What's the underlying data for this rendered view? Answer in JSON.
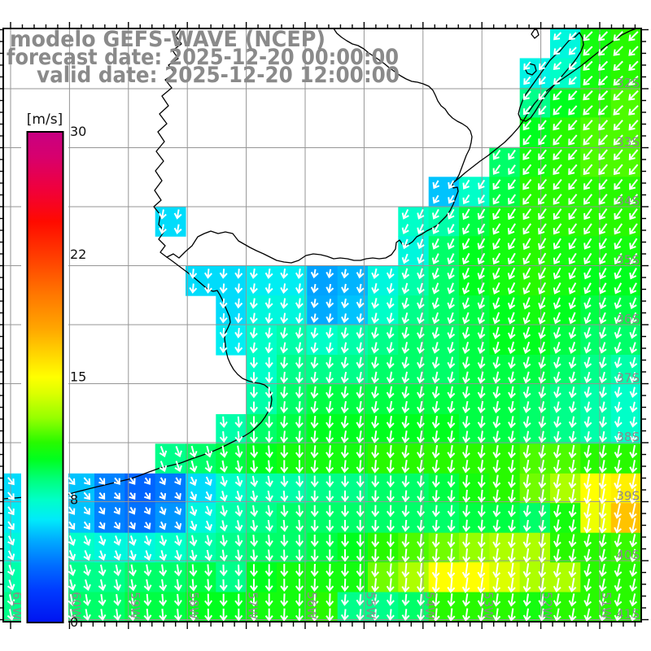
{
  "title": {
    "line1": "modelo GEFS-WAVE (NCEP)",
    "line2": "forecast date: 2025-12-20 00:00:00",
    "line3": "valid date: 2025-12-20 12:00:00"
  },
  "colorbar": {
    "unit_label": "[m/s]",
    "min": 0,
    "max": 30,
    "tick_labels": [
      "30",
      "22",
      "15",
      "8",
      "0"
    ],
    "stops": [
      {
        "v": 0,
        "c": "#0014f0"
      },
      {
        "v": 2,
        "c": "#003cff"
      },
      {
        "v": 3.5,
        "c": "#006eff"
      },
      {
        "v": 5,
        "c": "#00aaff"
      },
      {
        "v": 6.3,
        "c": "#00ebfa"
      },
      {
        "v": 7.5,
        "c": "#00ffc8"
      },
      {
        "v": 8.8,
        "c": "#00ff78"
      },
      {
        "v": 10,
        "c": "#00ff1e"
      },
      {
        "v": 11,
        "c": "#28fa00"
      },
      {
        "v": 12.5,
        "c": "#96ff00"
      },
      {
        "v": 14,
        "c": "#dcff00"
      },
      {
        "v": 15,
        "c": "#ffff00"
      },
      {
        "v": 16.5,
        "c": "#ffd200"
      },
      {
        "v": 18,
        "c": "#ffa500"
      },
      {
        "v": 20,
        "c": "#ff7800"
      },
      {
        "v": 22,
        "c": "#ff4600"
      },
      {
        "v": 24.5,
        "c": "#ff0a00"
      },
      {
        "v": 26.5,
        "c": "#f0003c"
      },
      {
        "v": 28.5,
        "c": "#d7006e"
      },
      {
        "v": 30,
        "c": "#c80082"
      }
    ]
  },
  "colors": {
    "grid": "#969696",
    "axis_label": "#8a8a8a",
    "title": "#8a8a8a",
    "coast": "#000000",
    "arrow": "#ffffff",
    "frame": "#000000",
    "tick": "#000000",
    "colorbar_label": "#111111",
    "background": "#ffffff"
  },
  "chart_data": {
    "type": "heatmap",
    "model": "GEFS-WAVE (NCEP)",
    "variable": "wind speed with direction vectors",
    "unit": "m/s",
    "lat_ticks": [
      "32S",
      "33S",
      "34S",
      "35S",
      "36S",
      "37S",
      "38S",
      "39S",
      "40S",
      "41S"
    ],
    "lon_ticks": [
      "61W",
      "60W",
      "59W",
      "58W",
      "57W",
      "56W",
      "55W",
      "54W",
      "53W",
      "52W",
      "51W"
    ],
    "grid": {
      "cols": 21,
      "rows": 20,
      "cell_size_deg": 0.5
    },
    "speed_ms": [
      [
        null,
        null,
        null,
        null,
        null,
        null,
        null,
        null,
        null,
        null,
        null,
        null,
        null,
        null,
        null,
        null,
        null,
        null,
        7,
        10.5,
        11
      ],
      [
        null,
        null,
        null,
        null,
        null,
        null,
        null,
        null,
        null,
        null,
        null,
        null,
        null,
        null,
        null,
        null,
        null,
        6.8,
        7.5,
        10.5,
        11
      ],
      [
        null,
        null,
        null,
        null,
        null,
        null,
        null,
        null,
        null,
        null,
        null,
        null,
        null,
        null,
        null,
        null,
        null,
        8.5,
        10,
        11,
        11.5
      ],
      [
        null,
        null,
        null,
        null,
        null,
        null,
        null,
        null,
        null,
        null,
        null,
        null,
        null,
        null,
        null,
        null,
        null,
        10,
        11,
        11.5,
        11.5
      ],
      [
        null,
        null,
        null,
        null,
        null,
        null,
        null,
        null,
        null,
        null,
        null,
        null,
        null,
        null,
        null,
        null,
        9,
        10.5,
        11,
        11.5,
        11.5
      ],
      [
        null,
        null,
        null,
        null,
        null,
        null,
        null,
        null,
        null,
        null,
        null,
        null,
        null,
        null,
        5.5,
        7.5,
        9.5,
        11,
        11,
        11,
        11
      ],
      [
        null,
        null,
        null,
        null,
        null,
        6,
        null,
        null,
        null,
        null,
        null,
        null,
        null,
        7.5,
        8,
        9.5,
        10.5,
        11,
        11,
        11,
        11
      ],
      [
        null,
        null,
        null,
        null,
        null,
        null,
        null,
        null,
        null,
        null,
        null,
        null,
        null,
        7,
        9,
        10,
        10.5,
        11,
        10.5,
        10.5,
        10.5
      ],
      [
        null,
        null,
        null,
        null,
        null,
        null,
        6,
        6,
        6.5,
        6.5,
        4.8,
        5.2,
        7,
        8,
        9,
        10,
        10.5,
        11,
        10.5,
        10,
        10
      ],
      [
        null,
        null,
        null,
        null,
        null,
        null,
        null,
        6,
        7,
        7,
        5,
        5.5,
        7.5,
        8.5,
        9,
        9.5,
        10,
        10.5,
        10,
        9.5,
        9.5
      ],
      [
        null,
        null,
        null,
        null,
        null,
        null,
        null,
        6.5,
        7.5,
        8,
        7.5,
        8,
        8.5,
        9,
        9,
        9.5,
        10,
        10,
        9.5,
        9,
        9
      ],
      [
        null,
        null,
        null,
        null,
        null,
        null,
        null,
        null,
        7.5,
        8.5,
        8.5,
        8.5,
        9,
        9,
        9,
        9.5,
        9.5,
        9.5,
        9,
        8.5,
        8
      ],
      [
        null,
        null,
        null,
        null,
        null,
        null,
        null,
        null,
        8,
        9,
        9.5,
        9.5,
        9.5,
        9.5,
        9.5,
        9.5,
        9.5,
        9,
        8.5,
        8,
        7.5
      ],
      [
        null,
        null,
        null,
        null,
        null,
        null,
        null,
        8,
        9,
        9.5,
        10,
        10,
        10,
        10,
        10,
        9.5,
        9.5,
        9,
        8.5,
        8,
        7.5
      ],
      [
        null,
        null,
        null,
        null,
        null,
        8.5,
        9,
        9.5,
        10,
        10.5,
        10.5,
        10.5,
        11,
        11,
        11,
        11,
        11,
        11.5,
        11.5,
        11,
        11
      ],
      [
        6,
        null,
        5.5,
        4,
        3.2,
        3.8,
        6,
        7.5,
        8,
        8,
        8.5,
        8.5,
        9,
        9,
        9.5,
        10.5,
        11,
        12,
        13,
        15,
        15.5
      ],
      [
        6.5,
        6,
        5.5,
        4,
        3.6,
        4.5,
        7,
        8,
        8.5,
        9,
        9,
        9,
        9,
        9,
        9,
        9.5,
        9.5,
        9,
        10.5,
        14.5,
        17
      ],
      [
        7,
        7,
        7.5,
        7,
        7,
        7.5,
        8,
        8.5,
        9,
        9,
        9.5,
        10,
        11,
        11.5,
        12,
        12.5,
        13,
        13,
        11,
        11,
        11.2
      ],
      [
        8,
        8,
        8.5,
        8.5,
        9,
        9,
        9.5,
        8.5,
        10,
        10.5,
        10.5,
        10.5,
        12,
        13,
        15,
        15,
        14,
        13,
        13,
        11,
        11
      ],
      [
        8.5,
        8.5,
        9,
        9,
        9.5,
        9.5,
        10,
        10,
        10.5,
        10.5,
        11,
        8.5,
        8.5,
        9,
        11,
        11,
        11,
        10.5,
        11,
        11,
        11
      ]
    ],
    "direction_deg": [
      [
        0,
        0,
        0,
        0,
        0,
        0,
        0,
        0,
        0,
        0,
        0,
        0,
        0,
        0,
        0,
        0,
        0,
        0,
        45,
        45,
        45
      ],
      [
        0,
        0,
        0,
        0,
        0,
        0,
        0,
        0,
        0,
        0,
        0,
        0,
        0,
        0,
        0,
        0,
        0,
        40,
        45,
        45,
        45
      ],
      [
        0,
        0,
        0,
        0,
        0,
        0,
        0,
        0,
        0,
        0,
        0,
        0,
        0,
        0,
        0,
        0,
        0,
        40,
        42,
        45,
        45
      ],
      [
        0,
        0,
        0,
        0,
        0,
        0,
        0,
        0,
        0,
        0,
        0,
        0,
        0,
        0,
        0,
        0,
        0,
        38,
        40,
        42,
        42
      ],
      [
        0,
        0,
        0,
        0,
        0,
        0,
        0,
        0,
        0,
        0,
        0,
        0,
        0,
        0,
        0,
        0,
        35,
        38,
        40,
        40,
        40
      ],
      [
        0,
        0,
        0,
        0,
        0,
        0,
        0,
        0,
        0,
        0,
        0,
        0,
        0,
        0,
        30,
        32,
        35,
        38,
        38,
        38,
        38
      ],
      [
        0,
        0,
        0,
        0,
        0,
        10,
        0,
        0,
        0,
        0,
        0,
        0,
        0,
        25,
        28,
        30,
        32,
        35,
        35,
        35,
        35
      ],
      [
        0,
        0,
        0,
        0,
        0,
        0,
        0,
        0,
        0,
        0,
        0,
        0,
        0,
        20,
        25,
        28,
        30,
        30,
        32,
        32,
        32
      ],
      [
        0,
        0,
        0,
        0,
        0,
        0,
        5,
        5,
        8,
        8,
        10,
        10,
        12,
        15,
        20,
        22,
        25,
        28,
        28,
        28,
        28
      ],
      [
        0,
        0,
        0,
        0,
        0,
        0,
        0,
        5,
        8,
        8,
        10,
        10,
        12,
        15,
        18,
        20,
        20,
        22,
        22,
        22,
        22
      ],
      [
        0,
        0,
        0,
        0,
        0,
        0,
        0,
        5,
        8,
        10,
        10,
        10,
        12,
        12,
        15,
        15,
        15,
        18,
        18,
        18,
        18
      ],
      [
        0,
        0,
        0,
        0,
        0,
        0,
        0,
        0,
        0,
        5,
        8,
        10,
        10,
        12,
        12,
        12,
        12,
        15,
        15,
        15,
        15
      ],
      [
        0,
        0,
        0,
        0,
        0,
        0,
        0,
        0,
        0,
        5,
        8,
        8,
        10,
        10,
        10,
        10,
        10,
        12,
        12,
        12,
        12
      ],
      [
        0,
        0,
        0,
        0,
        0,
        0,
        0,
        -5,
        0,
        5,
        5,
        8,
        8,
        8,
        8,
        8,
        10,
        10,
        10,
        10,
        10
      ],
      [
        0,
        0,
        0,
        0,
        0,
        -20,
        -15,
        -10,
        -5,
        0,
        5,
        5,
        5,
        8,
        8,
        8,
        8,
        10,
        10,
        10,
        10
      ],
      [
        -40,
        0,
        -40,
        -38,
        -35,
        -30,
        -25,
        -15,
        -10,
        -5,
        0,
        0,
        2,
        5,
        5,
        5,
        8,
        8,
        10,
        10,
        12
      ],
      [
        -35,
        -35,
        -35,
        -32,
        -30,
        -25,
        -20,
        -12,
        -8,
        -5,
        0,
        0,
        2,
        5,
        5,
        5,
        8,
        8,
        10,
        10,
        12
      ],
      [
        -25,
        -25,
        -22,
        -20,
        -18,
        -15,
        -12,
        -8,
        -5,
        -2,
        0,
        0,
        2,
        5,
        5,
        5,
        8,
        8,
        10,
        12,
        12
      ],
      [
        -18,
        -18,
        -15,
        -12,
        -10,
        -8,
        -5,
        -2,
        0,
        0,
        2,
        2,
        5,
        5,
        5,
        8,
        8,
        8,
        10,
        12,
        12
      ],
      [
        -12,
        -12,
        -10,
        -8,
        -5,
        -5,
        -2,
        0,
        0,
        2,
        2,
        5,
        5,
        5,
        5,
        8,
        8,
        8,
        10,
        12,
        12
      ]
    ]
  }
}
